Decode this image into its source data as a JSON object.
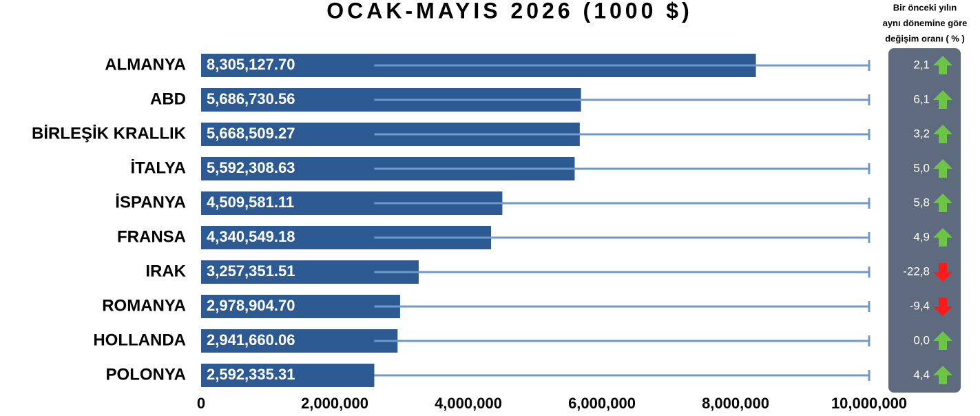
{
  "chart_data": {
    "type": "bar",
    "title": "OCAK-MAYIS 2026 (1000 $)",
    "categories": [
      "ALMANYA",
      "ABD",
      "BİRLEŞİK KRALLIK",
      "İTALYA",
      "İSPANYA",
      "FRANSA",
      "IRAK",
      "ROMANYA",
      "HOLLANDA",
      "POLONYA"
    ],
    "values": [
      8305127.7,
      5686730.56,
      5668509.27,
      5592308.63,
      4509581.11,
      4340549.18,
      3257351.51,
      2978904.7,
      2941660.06,
      2592335.31
    ],
    "value_labels": [
      "8,305,127.70",
      "5,686,730.56",
      "5,668,509.27",
      "5,592,308.63",
      "4,509,581.11",
      "4,340,549.18",
      "3,257,351.51",
      "2,978,904.70",
      "2,941,660.06",
      "2,592,335.31"
    ],
    "color": "#2e5a94",
    "xlim": [
      0,
      10000000
    ],
    "xticks": [
      0,
      {
        "value": 2000000,
        "label": "2,000,000"
      },
      {
        "value": 4000000,
        "label": "4,000,000"
      },
      {
        "value": 6000000,
        "label": "6,000,000"
      },
      {
        "value": 8000000,
        "label": "8,000,000"
      },
      {
        "value": 10000000,
        "label": "10,000,000"
      }
    ],
    "change_title": [
      "Bir önceki yılın",
      "aynı dönemine göre",
      "değişim oranı ( % )"
    ],
    "change_values": [
      2.1,
      6.1,
      3.2,
      5.0,
      5.8,
      4.9,
      -22.8,
      -9.4,
      0.0,
      4.4
    ],
    "change_labels": [
      "2,1",
      "6,1",
      "3,2",
      "5,0",
      "5,8",
      "4,9",
      "-22,8",
      "-9,4",
      "0,0",
      "4,4"
    ],
    "up_color": "#6cc644",
    "down_color": "#ff1a1a"
  }
}
